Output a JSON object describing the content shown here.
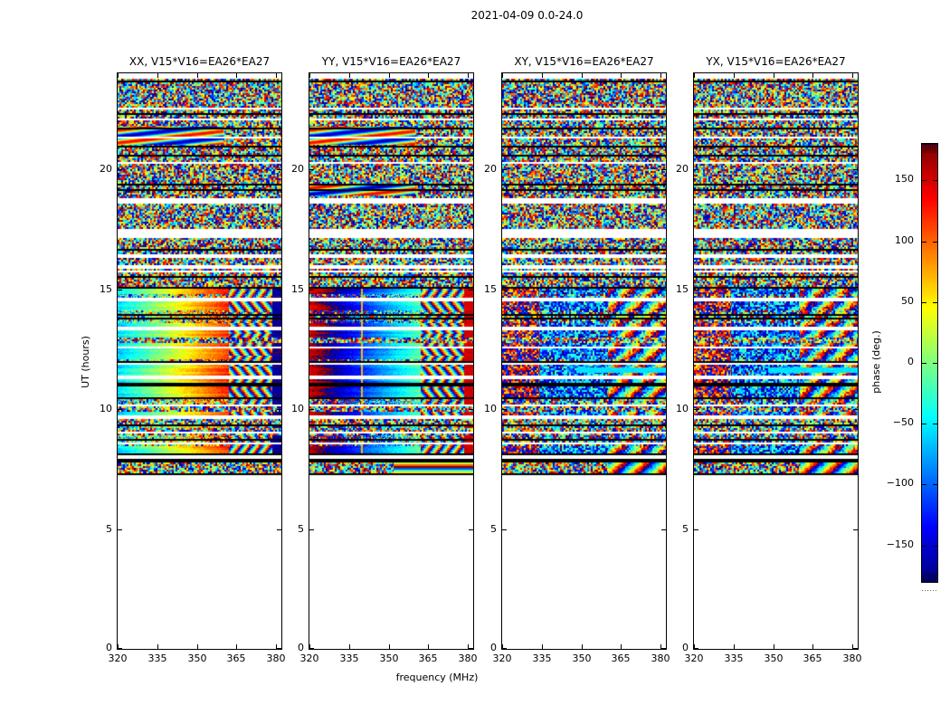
{
  "chart_data": {
    "type": "heatmap",
    "title": "2021-04-09 0.0-24.0",
    "xlabel": "frequency (MHz)",
    "ylabel": "UT (hours)",
    "x_range": [
      320,
      382
    ],
    "x_ticks": [
      320,
      335,
      350,
      365,
      380
    ],
    "y_range": [
      0,
      24
    ],
    "y_ticks": [
      0,
      5,
      10,
      15,
      20
    ],
    "colorbar": {
      "label": "phase (deg.)",
      "range": [
        -180,
        180
      ],
      "ticks": [
        150,
        100,
        50,
        0,
        -50,
        -100,
        -150
      ],
      "tick_labels": [
        "150",
        "100",
        "50",
        "0",
        "−50",
        "−100",
        "−150"
      ],
      "colormap": "jet"
    },
    "panels": [
      {
        "id": "xx",
        "title": "XX, V15*V16=EA26*EA27",
        "mode": "gradient",
        "phase_at_320": -60,
        "slope_deg_per_mhz": 4.3,
        "right_edge_phase": -170,
        "seed": 11
      },
      {
        "id": "yy",
        "title": "YY, V15*V16=EA26*EA27",
        "mode": "gradient",
        "phase_at_320": 150,
        "slope_deg_per_mhz": 4.6,
        "right_edge_phase": 150,
        "marker_freq_mhz": 340,
        "seed": 22
      },
      {
        "id": "xy",
        "title": "XY, V15*V16=EA26*EA27",
        "mode": "noise-biased",
        "seed": 33
      },
      {
        "id": "yx",
        "title": "YX, V15*V16=EA26*EA27",
        "mode": "noise-biased",
        "seed": 44
      }
    ],
    "coverage": {
      "data_start_hour": 7.23,
      "data_end_hour": 24.0
    },
    "bands": {
      "bottom_band_hours": [
        7.31,
        7.79
      ],
      "gradient_region_hours": [
        8.04,
        15.1
      ],
      "rfi_zigzag_freq_mhz": [
        362,
        378.5
      ],
      "top_noise_hours": [
        15.1,
        24.0
      ]
    },
    "white_gap_hours": [
      [
        23.74,
        24.0
      ],
      [
        22.52,
        22.6
      ],
      [
        22.02,
        22.09
      ],
      [
        18.6,
        18.76
      ],
      [
        17.1,
        17.52
      ],
      [
        16.28,
        16.48
      ],
      [
        15.88,
        15.97
      ],
      [
        14.5,
        14.62
      ],
      [
        13.32,
        13.42
      ],
      [
        12.5,
        12.6
      ],
      [
        11.84,
        11.93
      ],
      [
        11.26,
        11.36
      ],
      [
        10.08,
        10.16
      ],
      [
        9.6,
        9.7
      ],
      [
        8.96,
        9.06
      ],
      [
        8.56,
        8.62
      ],
      [
        7.89,
        8.04
      ]
    ],
    "black_line_hours": [
      [
        22.28,
        22.36
      ],
      [
        20.9,
        20.99
      ],
      [
        20.52,
        20.58
      ],
      [
        19.3,
        19.38
      ],
      [
        17.55,
        17.62
      ],
      [
        16.6,
        16.66
      ],
      [
        15.47,
        15.56
      ],
      [
        15.05,
        15.12
      ],
      [
        13.86,
        13.94
      ],
      [
        10.98,
        11.12
      ],
      [
        10.44,
        10.5
      ],
      [
        9.32,
        9.37
      ],
      [
        8.04,
        8.12
      ],
      [
        7.79,
        7.89
      ],
      [
        7.23,
        7.31
      ]
    ],
    "wave_features": [
      {
        "panels": [
          0,
          1
        ],
        "hours": [
          21.02,
          21.78
        ],
        "freq_max_mhz": 360
      },
      {
        "panels": [
          1
        ],
        "hours": [
          18.92,
          19.36
        ],
        "freq_max_mhz": 360
      }
    ],
    "cyan_streaks": [
      {
        "panels": [
          2,
          3
        ],
        "hours": [
          11.52,
          11.72
        ],
        "freq_min_mhz": 348,
        "phase": -55
      }
    ]
  }
}
